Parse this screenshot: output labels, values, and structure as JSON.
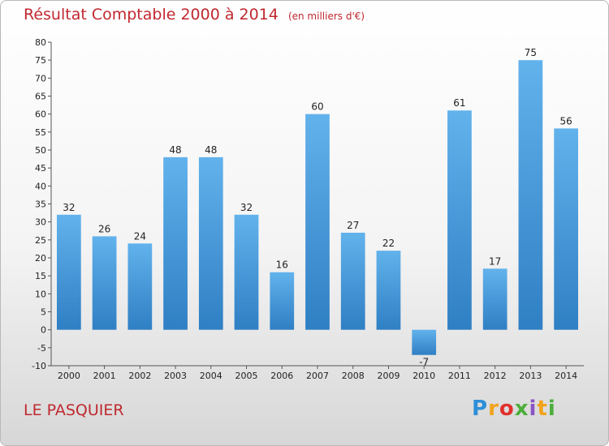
{
  "title": "Résultat Comptable 2000 à 2014",
  "title_unit": "(en milliers d'€)",
  "place": "LE PASQUIER",
  "logo": {
    "letters": [
      "P",
      "r",
      "o",
      "x",
      "i",
      "t",
      "i"
    ]
  },
  "colors": {
    "bar": "#3a8fd6",
    "bar_light": "#62b2ec",
    "title": "#c0282f"
  },
  "chart_data": {
    "type": "bar",
    "categories": [
      "2000",
      "2001",
      "2002",
      "2003",
      "2004",
      "2005",
      "2006",
      "2007",
      "2008",
      "2009",
      "2010",
      "2011",
      "2012",
      "2013",
      "2014"
    ],
    "values": [
      32,
      26,
      24,
      48,
      48,
      32,
      16,
      60,
      27,
      22,
      -7,
      61,
      17,
      75,
      56
    ],
    "ylim": [
      -10,
      80
    ],
    "yticks": [
      -10,
      -5,
      0,
      5,
      10,
      15,
      20,
      25,
      30,
      35,
      40,
      45,
      50,
      55,
      60,
      65,
      70,
      75,
      80
    ],
    "grid": false
  }
}
